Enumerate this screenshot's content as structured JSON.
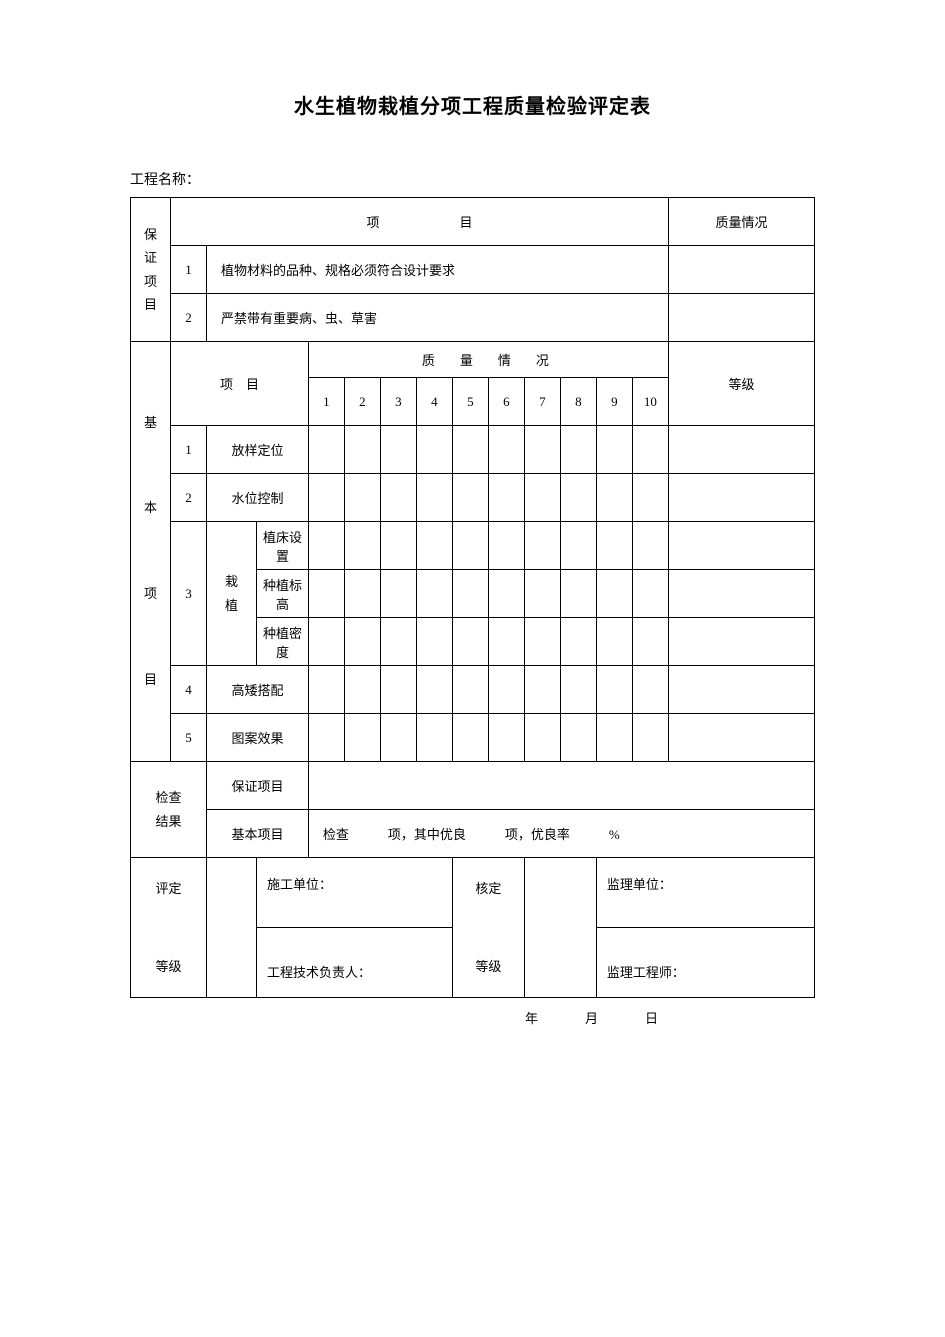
{
  "title": "水生植物栽植分项工程质量检验评定表",
  "project_name_label": "工程名称：",
  "guarantee": {
    "label": "保\n证\n项\n目",
    "header_item": "项　　目",
    "header_quality": "质量情况",
    "rows": [
      {
        "num": "1",
        "text": "植物材料的品种、规格必须符合设计要求"
      },
      {
        "num": "2",
        "text": "严禁带有重要病、虫、草害"
      }
    ]
  },
  "basic": {
    "label": "基\n\n本\n\n项\n\n目",
    "header_item": "项　目",
    "header_quality": "质　量　情　况",
    "header_grade": "等级",
    "cols": [
      "1",
      "2",
      "3",
      "4",
      "5",
      "6",
      "7",
      "8",
      "9",
      "10"
    ],
    "rows": [
      {
        "num": "1",
        "name": "放样定位"
      },
      {
        "num": "2",
        "name": "水位控制"
      },
      {
        "num": "3",
        "group": "栽\n植",
        "sub": [
          "植床设置",
          "种植标高",
          "种植密度"
        ]
      },
      {
        "num": "4",
        "name": "高矮搭配"
      },
      {
        "num": "5",
        "name": "图案效果"
      }
    ]
  },
  "check": {
    "label": "检查\n结果",
    "guarantee_label": "保证项目",
    "basic_label": "基本项目",
    "basic_text": "检查　　　项，其中优良　　　项，优良率　　　%"
  },
  "eval": {
    "label": "评定\n\n等级",
    "construction_unit": "施工单位：",
    "tech_leader": "工程技术负责人：",
    "verify_label": "核定\n\n等级",
    "supervision_unit": "监理单位：",
    "supervision_engineer": "监理工程师："
  },
  "footer_date": "年　　　月　　　日"
}
